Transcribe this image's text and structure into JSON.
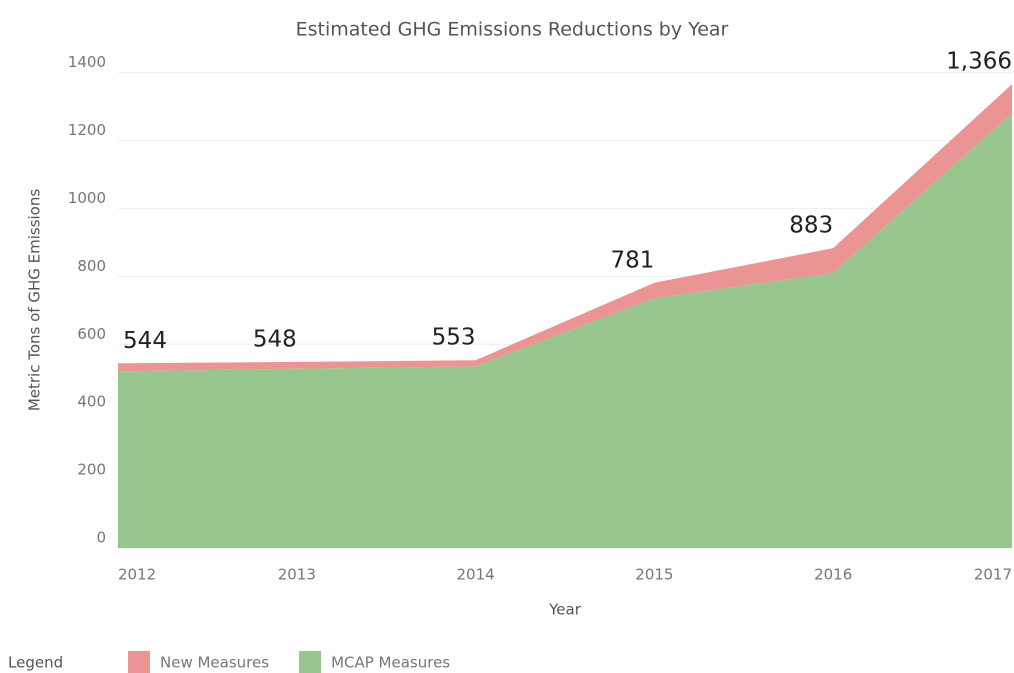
{
  "chart_data": {
    "type": "stacked_area",
    "title": "Estimated GHG Emissions Reductions by Year",
    "x_label": "Year",
    "y_label": "Metric Tons of GHG Emissions",
    "x": [
      2012,
      2013,
      2014,
      2015,
      2016,
      2017
    ],
    "xlim": [
      2012,
      2017
    ],
    "xticks": [
      2012,
      2013,
      2014,
      2015,
      2016,
      2017
    ],
    "ylim": [
      0,
      1440
    ],
    "yticks": [
      0,
      200,
      400,
      600,
      800,
      1000,
      1200,
      1400
    ],
    "grid": true,
    "legend_title": "Legend",
    "series": [
      {
        "name": "MCAP Measures",
        "color": "#98c48e",
        "values": [
          520,
          528,
          535,
          735,
          810,
          1280
        ]
      },
      {
        "name": "New Measures",
        "color": "#eb9494",
        "values": [
          24,
          20,
          18,
          46,
          73,
          86
        ]
      }
    ],
    "total_labels": [
      "544",
      "548",
      "553",
      "781",
      "883",
      "1,366"
    ]
  }
}
